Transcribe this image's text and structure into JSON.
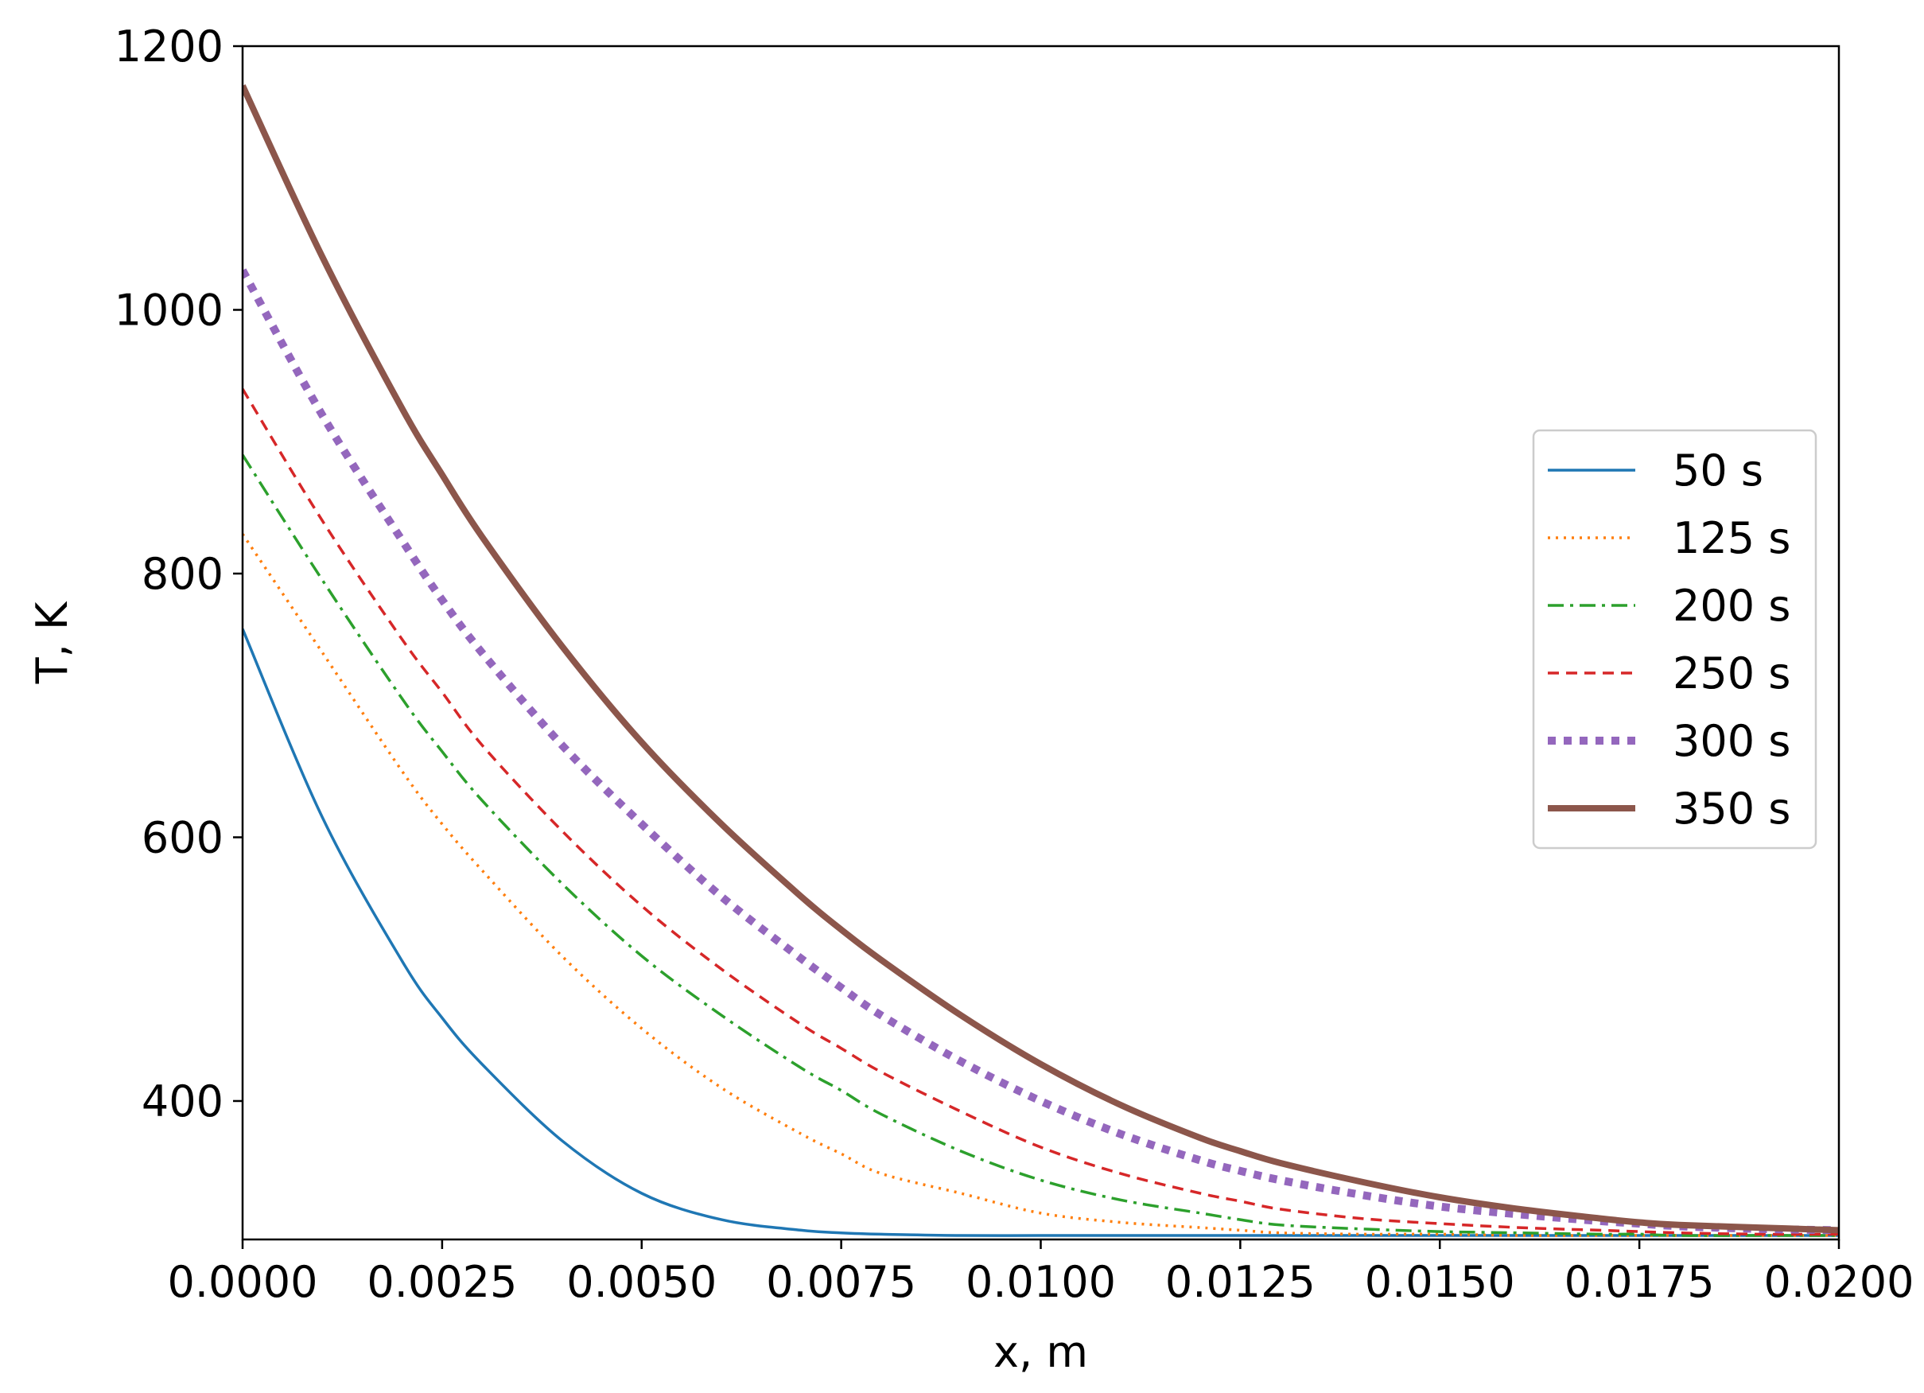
{
  "chart_data": {
    "type": "line",
    "title": "",
    "xlabel": "x, m",
    "ylabel": "T, K",
    "xlim": [
      0,
      0.02
    ],
    "ylim": [
      295,
      1200
    ],
    "xticks": [
      0.0,
      0.0025,
      0.005,
      0.0075,
      0.01,
      0.0125,
      0.015,
      0.0175,
      0.02
    ],
    "xtick_labels": [
      "0.0000",
      "0.0025",
      "0.0050",
      "0.0075",
      "0.0100",
      "0.0125",
      "0.0150",
      "0.0175",
      "0.0200"
    ],
    "yticks": [
      400,
      600,
      800,
      1000,
      1200
    ],
    "ytick_labels": [
      "400",
      "600",
      "800",
      "1000",
      "1200"
    ],
    "grid": false,
    "legend_position": "center-right",
    "x": [
      0,
      0.001,
      0.002,
      0.0025,
      0.003,
      0.004,
      0.005,
      0.006,
      0.007,
      0.0075,
      0.008,
      0.009,
      0.01,
      0.011,
      0.012,
      0.0125,
      0.013,
      0.014,
      0.015,
      0.016,
      0.017,
      0.0175,
      0.018,
      0.019,
      0.02
    ],
    "series": [
      {
        "name": "50 s",
        "color": "#1f77b4",
        "style": "solid",
        "values": [
          758,
          615,
          506,
          463,
          428,
          370,
          330,
          310,
          302,
          300,
          299,
          298,
          298,
          298,
          298,
          298,
          298,
          298,
          298,
          298,
          298,
          298,
          298,
          298,
          298
        ]
      },
      {
        "name": "125 s",
        "color": "#ff7f0e",
        "style": "dotted",
        "values": [
          830,
          740,
          650,
          610,
          575,
          510,
          455,
          410,
          375,
          360,
          345,
          330,
          315,
          308,
          304,
          302,
          300,
          299,
          299,
          298,
          298,
          298,
          298,
          298,
          298
        ]
      },
      {
        "name": "200 s",
        "color": "#2ca02c",
        "style": "dashdot",
        "values": [
          890,
          795,
          705,
          665,
          628,
          565,
          510,
          465,
          425,
          408,
          390,
          362,
          340,
          325,
          315,
          310,
          306,
          303,
          301,
          300,
          299,
          299,
          298,
          298,
          298
        ]
      },
      {
        "name": "250 s",
        "color": "#d62728",
        "style": "dashed",
        "values": [
          940,
          840,
          750,
          710,
          670,
          605,
          548,
          500,
          458,
          440,
          422,
          392,
          365,
          345,
          330,
          324,
          318,
          311,
          307,
          304,
          302,
          301,
          300,
          299,
          299
        ]
      },
      {
        "name": "300 s",
        "color": "#9467bd",
        "style": "dotted-thick",
        "values": [
          1030,
          920,
          825,
          780,
          740,
          670,
          610,
          555,
          508,
          486,
          465,
          430,
          400,
          375,
          355,
          347,
          340,
          329,
          320,
          314,
          309,
          307,
          305,
          303,
          302
        ]
      },
      {
        "name": "350 s",
        "color": "#8c564b",
        "style": "solid-thick",
        "values": [
          1170,
          1040,
          925,
          875,
          828,
          745,
          672,
          610,
          555,
          530,
          507,
          465,
          428,
          397,
          372,
          362,
          353,
          339,
          327,
          318,
          311,
          308,
          306,
          304,
          302
        ]
      }
    ]
  }
}
